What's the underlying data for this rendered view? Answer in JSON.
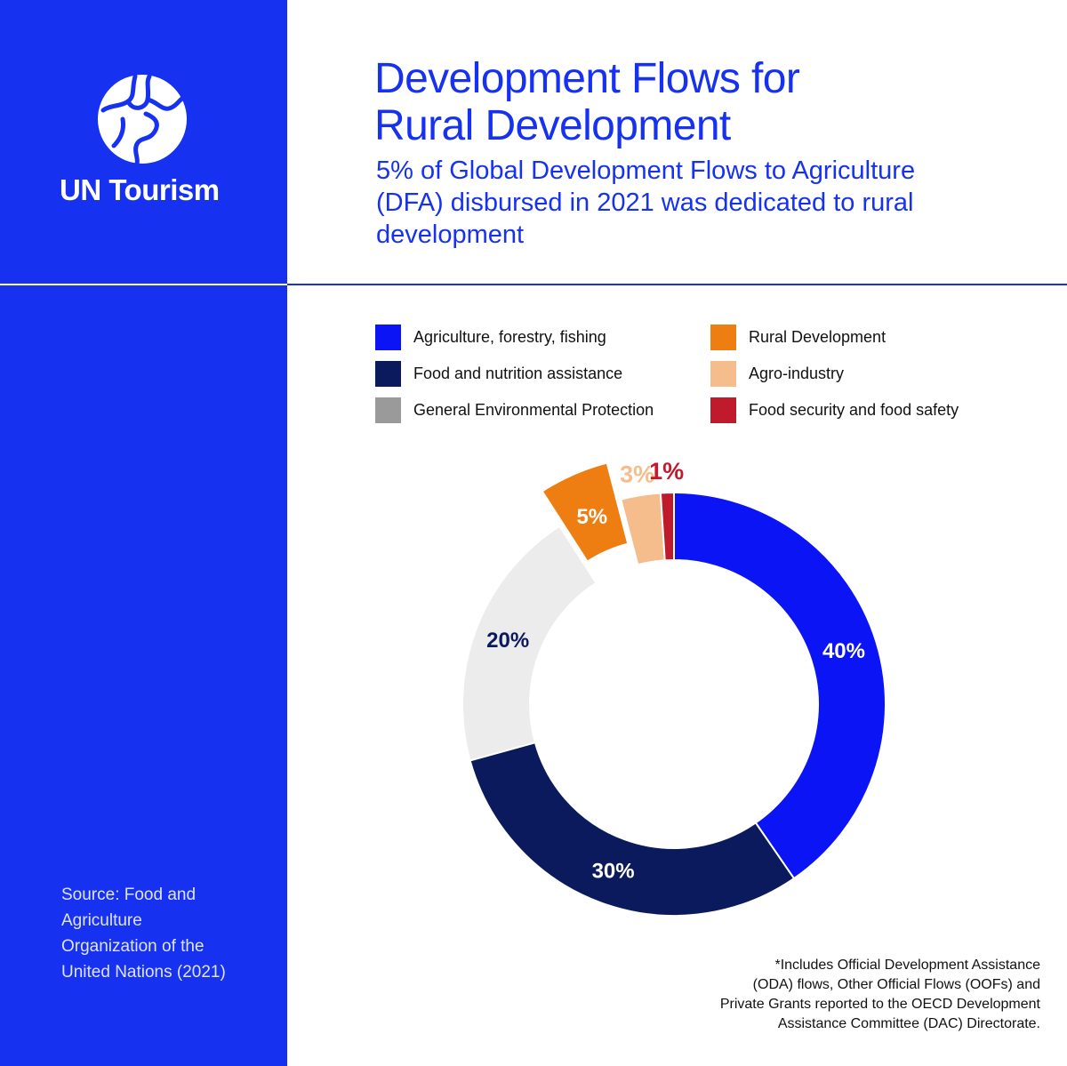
{
  "brand": {
    "name": "UN Tourism",
    "primary_color": "#1632f0"
  },
  "header": {
    "title_line1": "Development Flows for",
    "title_line2": "Rural Development",
    "subtitle_line1": "5% of Global Development Flows to Agriculture",
    "subtitle_line2": "(DFA) disbursed in 2021 was dedicated to rural",
    "subtitle_line3": "development"
  },
  "source": {
    "line1": "Source: Food and",
    "line2": "Agriculture",
    "line3": "Organization of the",
    "line4": "United Nations (2021)"
  },
  "footnote": {
    "line1": "*Includes Official Development Assistance",
    "line2": "(ODA) flows, Other Official Flows (OOFs) and",
    "line3": "Private Grants reported to the OECD Development",
    "line4": "Assistance Committee (DAC) Directorate."
  },
  "chart_data": {
    "type": "pie",
    "donut": true,
    "legend_position": "top",
    "slices": [
      {
        "name": "Agriculture, forestry, fishing",
        "value": 40,
        "label": "40%",
        "color": "#0a14f5",
        "label_color": "#ffffff",
        "exploded": false
      },
      {
        "name": "Food and nutrition assistance",
        "value": 30,
        "label": "30%",
        "color": "#0b1a5c",
        "label_color": "#ffffff",
        "exploded": false
      },
      {
        "name": "General Environmental Protection",
        "value": 20,
        "label": "20%",
        "color": "#ececec",
        "label_color": "#0b1a5c",
        "exploded": false
      },
      {
        "name": "Rural Development",
        "value": 5,
        "label": "5%",
        "color": "#ee7d12",
        "label_color": "#ffffff",
        "exploded": true
      },
      {
        "name": "Agro-industry",
        "value": 3,
        "label": "3%",
        "color": "#f5bd8c",
        "label_color": "#f5bd8c",
        "exploded": false
      },
      {
        "name": "Food security and food safety",
        "value": 1,
        "label": "1%",
        "color": "#c01b2c",
        "label_color": "#c01b2c",
        "exploded": false
      }
    ],
    "legend": [
      {
        "label": "Agriculture, forestry, fishing",
        "color": "#0a14f5"
      },
      {
        "label": "Food and nutrition assistance",
        "color": "#0b1a5c"
      },
      {
        "label": "General Environmental Protection",
        "color": "#9a9a9a"
      },
      {
        "label": "Rural Development",
        "color": "#ee7d12"
      },
      {
        "label": "Agro-industry",
        "color": "#f5bd8c"
      },
      {
        "label": "Food security and food safety",
        "color": "#c01b2c"
      }
    ]
  }
}
